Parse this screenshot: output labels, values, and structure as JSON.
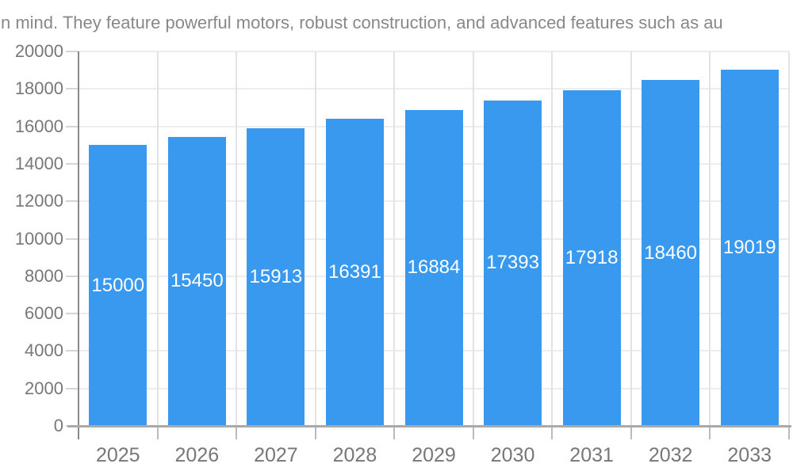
{
  "chart_data": {
    "type": "bar",
    "title": "n mind. They feature powerful motors, robust construction, and advanced features such as au",
    "categories": [
      "2025",
      "2026",
      "2027",
      "2028",
      "2029",
      "2030",
      "2031",
      "2032",
      "2033"
    ],
    "values": [
      15000,
      15450,
      15913,
      16391,
      16884,
      17393,
      17918,
      18460,
      19019
    ],
    "xlabel": "",
    "ylabel": "",
    "ylim": [
      0,
      20000
    ],
    "ytick_step": 2000,
    "ytick_labels": [
      "0",
      "2000",
      "4000",
      "6000",
      "8000",
      "10000",
      "12000",
      "14000",
      "16000",
      "18000",
      "20000"
    ],
    "grid": true,
    "legend_position": "none",
    "bar_color": "#3899ee",
    "bar_label_color": "#ffffff",
    "title_color": "#888888",
    "axis_label_color": "#777777",
    "gridline_color": "#ededed",
    "axis_line_color": "#8a8a8a"
  }
}
